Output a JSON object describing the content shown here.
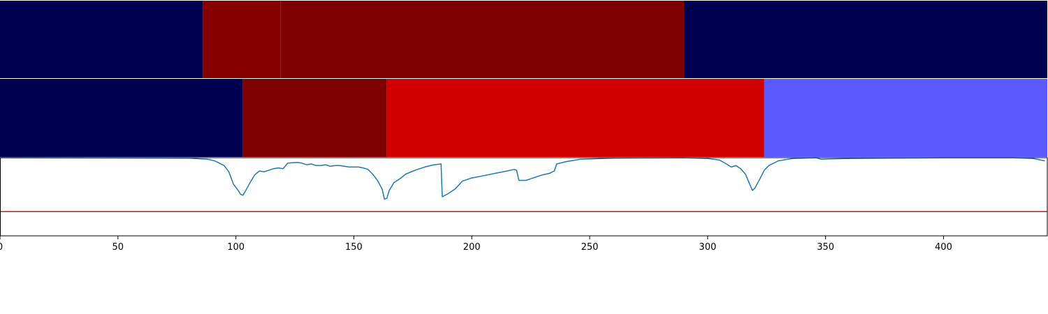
{
  "chart_data": [
    {
      "type": "heatmap",
      "panel": "segments-top",
      "xlim": [
        0,
        444
      ],
      "segments": [
        {
          "start": 0,
          "end": 86,
          "color": "#000050"
        },
        {
          "start": 86,
          "end": 119,
          "color": "#860000"
        },
        {
          "start": 119,
          "end": 290,
          "color": "#7e0000"
        },
        {
          "start": 290,
          "end": 444,
          "color": "#000050"
        }
      ]
    },
    {
      "type": "heatmap",
      "panel": "segments-bottom",
      "xlim": [
        0,
        444
      ],
      "segments": [
        {
          "start": 0,
          "end": 103,
          "color": "#000050"
        },
        {
          "start": 103,
          "end": 164,
          "color": "#7e0000"
        },
        {
          "start": 164,
          "end": 324,
          "color": "#d00000"
        },
        {
          "start": 324,
          "end": 444,
          "color": "#5a5aff"
        }
      ]
    },
    {
      "type": "line",
      "panel": "signal",
      "xlim": [
        0,
        444
      ],
      "ylim": [
        0,
        1
      ],
      "grid": false,
      "threshold": {
        "y": 0.31,
        "color": "#e01010"
      },
      "series": [
        {
          "color": "#1f77b4",
          "points": [
            [
              0,
              1.0
            ],
            [
              80,
              0.995
            ],
            [
              88,
              0.98
            ],
            [
              91,
              0.96
            ],
            [
              93,
              0.93
            ],
            [
              95,
              0.9
            ],
            [
              97,
              0.82
            ],
            [
              99,
              0.66
            ],
            [
              101,
              0.58
            ],
            [
              102,
              0.53
            ],
            [
              103,
              0.52
            ],
            [
              104,
              0.57
            ],
            [
              106,
              0.68
            ],
            [
              108,
              0.78
            ],
            [
              110,
              0.83
            ],
            [
              112,
              0.82
            ],
            [
              114,
              0.84
            ],
            [
              116,
              0.86
            ],
            [
              118,
              0.87
            ],
            [
              120,
              0.86
            ],
            [
              122,
              0.93
            ],
            [
              126,
              0.94
            ],
            [
              128,
              0.93
            ],
            [
              130,
              0.91
            ],
            [
              132,
              0.92
            ],
            [
              134,
              0.9
            ],
            [
              136,
              0.9
            ],
            [
              138,
              0.91
            ],
            [
              140,
              0.89
            ],
            [
              142,
              0.9
            ],
            [
              144,
              0.9
            ],
            [
              146,
              0.89
            ],
            [
              148,
              0.88
            ],
            [
              150,
              0.88
            ],
            [
              152,
              0.88
            ],
            [
              154,
              0.87
            ],
            [
              156,
              0.85
            ],
            [
              158,
              0.79
            ],
            [
              160,
              0.71
            ],
            [
              162,
              0.6
            ],
            [
              163,
              0.47
            ],
            [
              164,
              0.48
            ],
            [
              165,
              0.58
            ],
            [
              167,
              0.68
            ],
            [
              170,
              0.74
            ],
            [
              172,
              0.79
            ],
            [
              176,
              0.84
            ],
            [
              180,
              0.88
            ],
            [
              184,
              0.91
            ],
            [
              187,
              0.92
            ],
            [
              187.5,
              0.5
            ],
            [
              190,
              0.54
            ],
            [
              193,
              0.6
            ],
            [
              196,
              0.7
            ],
            [
              200,
              0.74
            ],
            [
              205,
              0.77
            ],
            [
              210,
              0.8
            ],
            [
              215,
              0.83
            ],
            [
              218,
              0.85
            ],
            [
              219,
              0.84
            ],
            [
              220,
              0.71
            ],
            [
              223,
              0.71
            ],
            [
              225,
              0.73
            ],
            [
              230,
              0.78
            ],
            [
              233,
              0.8
            ],
            [
              235,
              0.83
            ],
            [
              236,
              0.92
            ],
            [
              240,
              0.95
            ],
            [
              246,
              0.98
            ],
            [
              260,
              0.995
            ],
            [
              290,
              1.0
            ],
            [
              300,
              0.99
            ],
            [
              305,
              0.97
            ],
            [
              308,
              0.92
            ],
            [
              310,
              0.88
            ],
            [
              312,
              0.9
            ],
            [
              314,
              0.86
            ],
            [
              316,
              0.79
            ],
            [
              318,
              0.65
            ],
            [
              319,
              0.58
            ],
            [
              320,
              0.61
            ],
            [
              322,
              0.72
            ],
            [
              324,
              0.84
            ],
            [
              326,
              0.9
            ],
            [
              330,
              0.96
            ],
            [
              336,
              0.99
            ],
            [
              346,
              1.0
            ],
            [
              348,
              0.98
            ],
            [
              352,
              0.985
            ],
            [
              360,
              0.99
            ],
            [
              400,
              1.0
            ],
            [
              430,
              1.0
            ],
            [
              438,
              0.99
            ],
            [
              443,
              0.96
            ]
          ]
        }
      ]
    }
  ],
  "x_axis": {
    "ticks": [
      0,
      50,
      100,
      150,
      200,
      250,
      300,
      350,
      400
    ],
    "tick_labels": [
      "0",
      "50",
      "100",
      "150",
      "200",
      "250",
      "300",
      "350",
      "400"
    ]
  }
}
